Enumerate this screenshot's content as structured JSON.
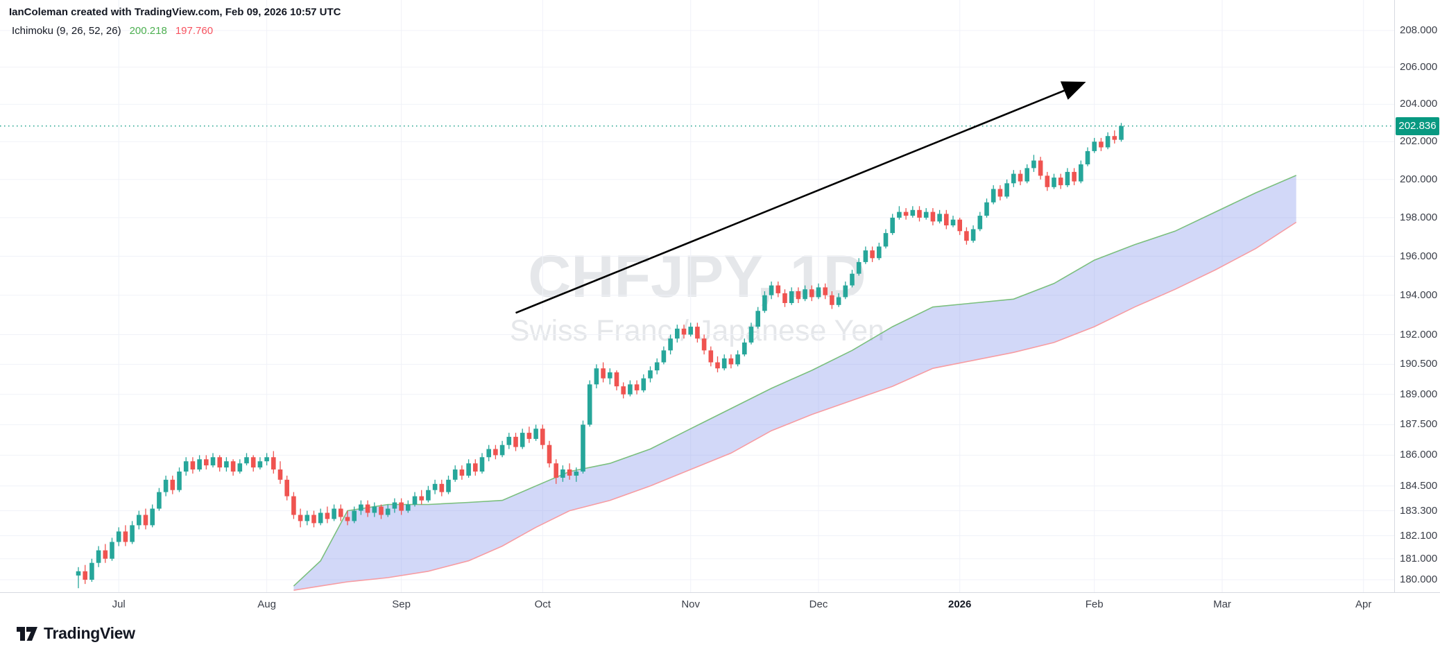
{
  "attribution": "IanColeman created with TradingView.com, Feb 09, 2026 10:57 UTC",
  "indicator": {
    "name": "Ichimoku (9, 26, 52, 26)",
    "senkou_a_value": "200.218",
    "senkou_b_value": "197.760",
    "senkou_a_color": "#4caf50",
    "senkou_b_color": "#f7525f"
  },
  "watermark": {
    "line1": "CHFJPY, 1D",
    "line2": "Swiss Franc / Japanese Yen"
  },
  "logo": {
    "text": "TradingView"
  },
  "last_price": {
    "price": 202.836,
    "label": "202.836",
    "badge_color": "#089981"
  },
  "colors": {
    "up": "#26a69a",
    "down": "#ef5350",
    "grid": "#f0f2f8",
    "axis_border": "#d6d9e0",
    "last_price_line": "#089981",
    "watermark": "rgba(41,55,80,0.12)"
  },
  "price_axis": {
    "ticks": [
      {
        "label": "208.000",
        "price": 208.0
      },
      {
        "label": "206.000",
        "price": 206.0
      },
      {
        "label": "204.000",
        "price": 204.0
      },
      {
        "label": "202.000",
        "price": 202.0
      },
      {
        "label": "200.000",
        "price": 200.0
      },
      {
        "label": "198.000",
        "price": 198.0
      },
      {
        "label": "196.000",
        "price": 196.0
      },
      {
        "label": "194.000",
        "price": 194.0
      },
      {
        "label": "192.000",
        "price": 192.0
      },
      {
        "label": "190.500",
        "price": 190.5
      },
      {
        "label": "189.000",
        "price": 189.0
      },
      {
        "label": "187.500",
        "price": 187.5
      },
      {
        "label": "186.000",
        "price": 186.0
      },
      {
        "label": "184.500",
        "price": 184.5
      },
      {
        "label": "183.300",
        "price": 183.3
      },
      {
        "label": "182.100",
        "price": 182.1
      },
      {
        "label": "181.000",
        "price": 181.0
      },
      {
        "label": "180.000",
        "price": 180.0
      }
    ]
  },
  "time_axis": {
    "ticks": [
      {
        "label": "Jul",
        "bar": 6,
        "emphasis": false
      },
      {
        "label": "Aug",
        "bar": 28,
        "emphasis": false
      },
      {
        "label": "Sep",
        "bar": 48,
        "emphasis": false
      },
      {
        "label": "Oct",
        "bar": 69,
        "emphasis": false
      },
      {
        "label": "Nov",
        "bar": 91,
        "emphasis": false
      },
      {
        "label": "Dec",
        "bar": 110,
        "emphasis": false
      },
      {
        "label": "2026",
        "bar": 131,
        "emphasis": true
      },
      {
        "label": "Feb",
        "bar": 151,
        "emphasis": false
      },
      {
        "label": "Mar",
        "bar": 170,
        "emphasis": false
      },
      {
        "label": "Apr",
        "bar": 191,
        "emphasis": false
      }
    ]
  },
  "chart_data": {
    "type": "candlestick",
    "symbol": "CHFJPY",
    "symbol_name": "Swiss Franc / Japanese Yen",
    "timeframe": "1D",
    "scale": "log",
    "ylim": [
      180.0,
      208.0
    ],
    "x_range_months": [
      "Jun 2025",
      "Apr 2026"
    ],
    "grid": true,
    "candles": [
      [
        180.2,
        180.6,
        179.6,
        180.4
      ],
      [
        180.4,
        180.7,
        179.8,
        180.0
      ],
      [
        180.0,
        181.0,
        179.9,
        180.8
      ],
      [
        180.8,
        181.6,
        180.6,
        181.4
      ],
      [
        181.4,
        181.7,
        180.8,
        181.0
      ],
      [
        181.0,
        182.0,
        180.9,
        181.8
      ],
      [
        181.8,
        182.5,
        181.6,
        182.3
      ],
      [
        182.3,
        182.6,
        181.6,
        181.8
      ],
      [
        181.8,
        182.8,
        181.7,
        182.6
      ],
      [
        182.6,
        183.3,
        182.4,
        183.1
      ],
      [
        183.1,
        183.4,
        182.4,
        182.6
      ],
      [
        182.6,
        183.6,
        182.5,
        183.4
      ],
      [
        183.4,
        184.4,
        183.3,
        184.2
      ],
      [
        184.2,
        185.0,
        184.0,
        184.8
      ],
      [
        184.8,
        185.0,
        184.1,
        184.3
      ],
      [
        184.3,
        185.4,
        184.2,
        185.2
      ],
      [
        185.2,
        185.9,
        185.0,
        185.7
      ],
      [
        185.7,
        185.9,
        185.1,
        185.3
      ],
      [
        185.3,
        186.0,
        185.2,
        185.8
      ],
      [
        185.8,
        186.0,
        185.3,
        185.5
      ],
      [
        185.5,
        186.1,
        185.4,
        185.9
      ],
      [
        185.9,
        186.0,
        185.2,
        185.4
      ],
      [
        185.4,
        185.9,
        185.2,
        185.7
      ],
      [
        185.7,
        185.8,
        185.0,
        185.2
      ],
      [
        185.2,
        185.8,
        185.1,
        185.6
      ],
      [
        185.6,
        186.1,
        185.5,
        185.9
      ],
      [
        185.9,
        186.0,
        185.2,
        185.4
      ],
      [
        185.4,
        185.9,
        185.3,
        185.7
      ],
      [
        185.7,
        186.1,
        185.5,
        185.9
      ],
      [
        185.9,
        186.2,
        185.1,
        185.3
      ],
      [
        185.3,
        185.7,
        184.6,
        184.8
      ],
      [
        184.8,
        185.0,
        183.8,
        184.0
      ],
      [
        184.0,
        184.2,
        182.9,
        183.1
      ],
      [
        183.1,
        183.4,
        182.5,
        182.8
      ],
      [
        182.8,
        183.3,
        182.6,
        183.1
      ],
      [
        183.1,
        183.3,
        182.5,
        182.7
      ],
      [
        182.7,
        183.4,
        182.6,
        183.2
      ],
      [
        183.2,
        183.5,
        182.7,
        182.9
      ],
      [
        182.9,
        183.6,
        182.8,
        183.4
      ],
      [
        183.4,
        183.6,
        182.8,
        183.0
      ],
      [
        183.0,
        183.3,
        182.6,
        182.8
      ],
      [
        182.8,
        183.5,
        182.7,
        183.3
      ],
      [
        183.3,
        183.8,
        183.1,
        183.6
      ],
      [
        183.6,
        183.8,
        183.0,
        183.2
      ],
      [
        183.2,
        183.7,
        183.0,
        183.5
      ],
      [
        183.5,
        183.6,
        182.9,
        183.1
      ],
      [
        183.1,
        183.6,
        183.0,
        183.4
      ],
      [
        183.4,
        183.9,
        183.2,
        183.7
      ],
      [
        183.7,
        183.9,
        183.1,
        183.3
      ],
      [
        183.3,
        183.8,
        183.2,
        183.6
      ],
      [
        183.6,
        184.2,
        183.5,
        184.0
      ],
      [
        184.0,
        184.3,
        183.6,
        183.8
      ],
      [
        183.8,
        184.5,
        183.7,
        184.3
      ],
      [
        184.3,
        184.8,
        184.1,
        184.6
      ],
      [
        184.6,
        184.8,
        184.0,
        184.2
      ],
      [
        184.2,
        185.0,
        184.1,
        184.8
      ],
      [
        184.8,
        185.5,
        184.7,
        185.3
      ],
      [
        185.3,
        185.5,
        184.8,
        185.0
      ],
      [
        185.0,
        185.8,
        184.9,
        185.6
      ],
      [
        185.6,
        185.8,
        185.0,
        185.2
      ],
      [
        185.2,
        186.1,
        185.1,
        185.9
      ],
      [
        185.9,
        186.5,
        185.7,
        186.3
      ],
      [
        186.3,
        186.5,
        185.8,
        186.0
      ],
      [
        186.0,
        186.7,
        185.9,
        186.5
      ],
      [
        186.5,
        187.1,
        186.3,
        186.9
      ],
      [
        186.9,
        187.1,
        186.2,
        186.4
      ],
      [
        186.4,
        187.3,
        186.3,
        187.1
      ],
      [
        187.1,
        187.4,
        186.6,
        186.8
      ],
      [
        186.8,
        187.5,
        186.7,
        187.3
      ],
      [
        187.3,
        187.5,
        186.3,
        186.5
      ],
      [
        186.5,
        186.7,
        185.4,
        185.6
      ],
      [
        185.6,
        185.8,
        184.6,
        184.9
      ],
      [
        184.9,
        185.5,
        184.7,
        185.3
      ],
      [
        185.3,
        185.6,
        184.8,
        185.0
      ],
      [
        185.0,
        185.4,
        184.7,
        185.2
      ],
      [
        185.2,
        187.7,
        185.1,
        187.5
      ],
      [
        187.5,
        189.7,
        187.4,
        189.5
      ],
      [
        189.5,
        190.5,
        189.3,
        190.3
      ],
      [
        190.3,
        190.6,
        189.6,
        189.8
      ],
      [
        189.8,
        190.3,
        189.5,
        190.1
      ],
      [
        190.1,
        190.2,
        189.2,
        189.4
      ],
      [
        189.4,
        189.6,
        188.8,
        189.0
      ],
      [
        189.0,
        189.7,
        188.9,
        189.5
      ],
      [
        189.5,
        189.7,
        189.0,
        189.2
      ],
      [
        189.2,
        190.0,
        189.1,
        189.8
      ],
      [
        189.8,
        190.4,
        189.6,
        190.2
      ],
      [
        190.2,
        190.8,
        190.0,
        190.6
      ],
      [
        190.6,
        191.4,
        190.5,
        191.2
      ],
      [
        191.2,
        192.0,
        191.0,
        191.8
      ],
      [
        191.8,
        192.5,
        191.6,
        192.3
      ],
      [
        192.3,
        192.5,
        191.8,
        192.0
      ],
      [
        192.0,
        192.6,
        191.9,
        192.4
      ],
      [
        192.4,
        192.6,
        191.6,
        191.8
      ],
      [
        191.8,
        192.0,
        191.0,
        191.2
      ],
      [
        191.2,
        191.4,
        190.4,
        190.6
      ],
      [
        190.6,
        190.9,
        190.1,
        190.3
      ],
      [
        190.3,
        191.0,
        190.2,
        190.8
      ],
      [
        190.8,
        191.0,
        190.3,
        190.5
      ],
      [
        190.5,
        191.2,
        190.4,
        191.0
      ],
      [
        191.0,
        191.8,
        190.9,
        191.6
      ],
      [
        191.6,
        192.6,
        191.5,
        192.4
      ],
      [
        192.4,
        193.4,
        192.3,
        193.2
      ],
      [
        193.2,
        194.2,
        193.1,
        194.0
      ],
      [
        194.0,
        194.7,
        193.8,
        194.5
      ],
      [
        194.5,
        194.7,
        193.9,
        194.1
      ],
      [
        194.1,
        194.3,
        193.4,
        193.6
      ],
      [
        193.6,
        194.4,
        193.5,
        194.2
      ],
      [
        194.2,
        194.4,
        193.6,
        193.8
      ],
      [
        193.8,
        194.5,
        193.7,
        194.3
      ],
      [
        194.3,
        194.5,
        193.7,
        193.9
      ],
      [
        193.9,
        194.6,
        193.8,
        194.4
      ],
      [
        194.4,
        194.6,
        193.8,
        194.0
      ],
      [
        194.0,
        194.2,
        193.3,
        193.5
      ],
      [
        193.5,
        194.1,
        193.4,
        193.9
      ],
      [
        193.9,
        194.7,
        193.8,
        194.5
      ],
      [
        194.5,
        195.3,
        194.4,
        195.1
      ],
      [
        195.1,
        195.9,
        195.0,
        195.7
      ],
      [
        195.7,
        196.5,
        195.6,
        196.3
      ],
      [
        196.3,
        196.5,
        195.7,
        195.9
      ],
      [
        195.9,
        196.7,
        195.8,
        196.5
      ],
      [
        196.5,
        197.4,
        196.4,
        197.2
      ],
      [
        197.2,
        198.2,
        197.1,
        198.0
      ],
      [
        198.0,
        198.6,
        197.9,
        198.3
      ],
      [
        198.3,
        198.5,
        197.9,
        198.1
      ],
      [
        198.1,
        198.6,
        198.0,
        198.4
      ],
      [
        198.4,
        198.6,
        197.8,
        198.0
      ],
      [
        198.0,
        198.5,
        197.9,
        198.3
      ],
      [
        198.3,
        198.5,
        197.6,
        197.8
      ],
      [
        197.8,
        198.4,
        197.7,
        198.2
      ],
      [
        198.2,
        198.4,
        197.4,
        197.6
      ],
      [
        197.6,
        198.1,
        197.5,
        197.9
      ],
      [
        197.9,
        198.0,
        197.1,
        197.3
      ],
      [
        197.3,
        197.5,
        196.6,
        196.8
      ],
      [
        196.8,
        197.6,
        196.7,
        197.4
      ],
      [
        197.4,
        198.3,
        197.3,
        198.1
      ],
      [
        198.1,
        199.0,
        198.0,
        198.8
      ],
      [
        198.8,
        199.7,
        198.7,
        199.5
      ],
      [
        199.5,
        199.7,
        198.9,
        199.1
      ],
      [
        199.1,
        200.0,
        199.0,
        199.8
      ],
      [
        199.8,
        200.5,
        199.6,
        200.3
      ],
      [
        200.3,
        200.5,
        199.7,
        199.9
      ],
      [
        199.9,
        200.8,
        199.8,
        200.6
      ],
      [
        200.6,
        201.3,
        200.4,
        201.0
      ],
      [
        201.0,
        201.2,
        200.0,
        200.2
      ],
      [
        200.2,
        200.4,
        199.4,
        199.6
      ],
      [
        199.6,
        200.3,
        199.5,
        200.1
      ],
      [
        200.1,
        200.3,
        199.5,
        199.7
      ],
      [
        199.7,
        200.6,
        199.6,
        200.4
      ],
      [
        200.4,
        200.6,
        199.7,
        199.9
      ],
      [
        199.9,
        201.0,
        199.8,
        200.8
      ],
      [
        200.8,
        201.7,
        200.7,
        201.5
      ],
      [
        201.5,
        202.2,
        201.4,
        202.0
      ],
      [
        202.0,
        202.2,
        201.5,
        201.7
      ],
      [
        201.7,
        202.5,
        201.6,
        202.3
      ],
      [
        202.3,
        202.6,
        201.9,
        202.1
      ],
      [
        202.1,
        203.0,
        202.0,
        202.836
      ]
    ],
    "ichimoku_cloud": {
      "params": [
        9,
        26,
        52,
        26
      ],
      "fill": "rgba(125,142,235,0.35)",
      "span_a_color": "#7bbf7e",
      "span_b_color": "#f79ca2",
      "points": [
        [
          32,
          179.7,
          179.5
        ],
        [
          36,
          180.9,
          179.7
        ],
        [
          40,
          183.3,
          179.9
        ],
        [
          46,
          183.6,
          180.1
        ],
        [
          52,
          183.6,
          180.4
        ],
        [
          58,
          183.7,
          180.9
        ],
        [
          63,
          183.8,
          181.6
        ],
        [
          68,
          184.5,
          182.5
        ],
        [
          73,
          185.2,
          183.3
        ],
        [
          79,
          185.6,
          183.8
        ],
        [
          85,
          186.3,
          184.5
        ],
        [
          91,
          187.3,
          185.3
        ],
        [
          97,
          188.3,
          186.1
        ],
        [
          103,
          189.3,
          187.2
        ],
        [
          109,
          190.2,
          188.0
        ],
        [
          115,
          191.2,
          188.7
        ],
        [
          121,
          192.4,
          189.4
        ],
        [
          127,
          193.4,
          190.3
        ],
        [
          133,
          193.6,
          190.7
        ],
        [
          139,
          193.8,
          191.1
        ],
        [
          145,
          194.6,
          191.6
        ],
        [
          151,
          195.8,
          192.4
        ],
        [
          157,
          196.6,
          193.4
        ],
        [
          163,
          197.3,
          194.3
        ],
        [
          169,
          198.3,
          195.3
        ],
        [
          175,
          199.3,
          196.4
        ],
        [
          181,
          200.218,
          197.76
        ]
      ]
    },
    "trend_arrow": {
      "from_bar": 65,
      "from_price": 193.1,
      "to_bar": 149,
      "to_price": 205.1,
      "color": "#000000"
    }
  }
}
